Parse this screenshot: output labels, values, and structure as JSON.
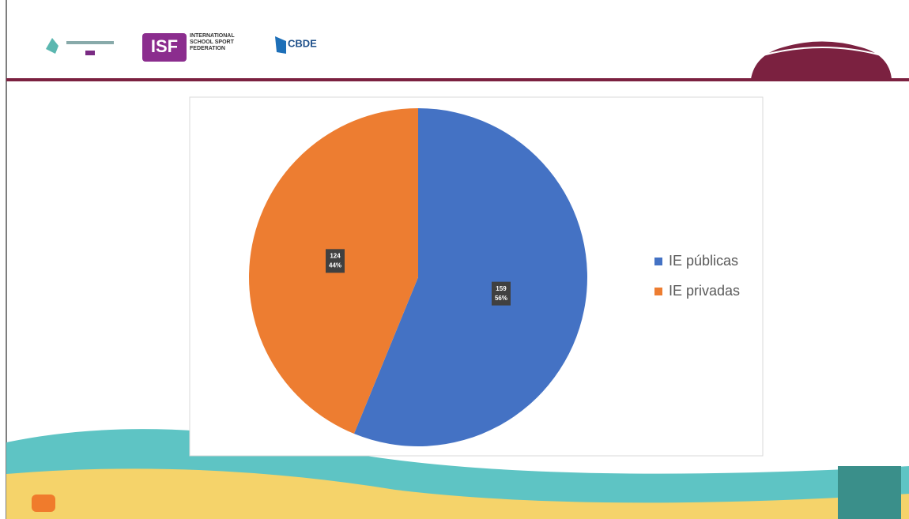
{
  "header": {
    "logos": [
      "ISF",
      "INTERNATIONAL SCHOOL SPORT FEDERATION",
      "CBDE"
    ]
  },
  "chart_data": {
    "type": "pie",
    "categories": [
      "IE públicas",
      "IE privadas"
    ],
    "values": [
      159,
      124
    ],
    "percent_labels": [
      "56%",
      "44%"
    ],
    "colors": [
      "#4472c4",
      "#ed7d31"
    ],
    "legend": "right"
  }
}
